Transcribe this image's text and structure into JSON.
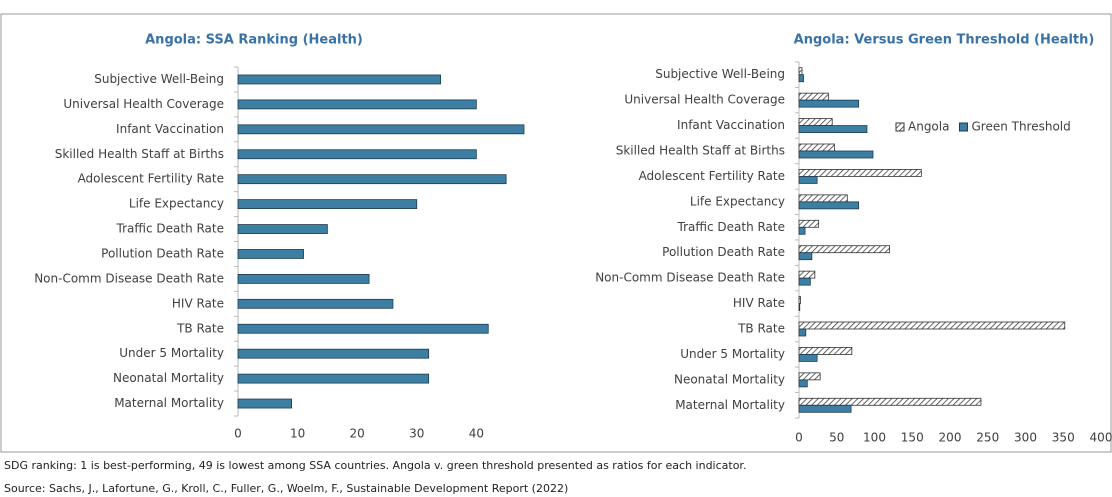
{
  "chart_data": [
    {
      "type": "bar",
      "orientation": "horizontal",
      "title": "Angola: SSA Ranking (Health)",
      "categories": [
        "Subjective Well-Being",
        "Universal Health Coverage",
        "Infant Vaccination",
        "Skilled Health Staff at Births",
        "Adolescent Fertility Rate",
        "Life Expectancy",
        "Traffic Death Rate",
        "Pollution Death Rate",
        "Non-Comm Disease Death Rate",
        "HIV Rate",
        "TB Rate",
        "Under 5 Mortality",
        "Neonatal Mortality",
        "Maternal Mortality"
      ],
      "series": [
        {
          "name": "Angola",
          "color": "#3d7ea3",
          "values": [
            34,
            40,
            48,
            40,
            45,
            30,
            15,
            11,
            22,
            26,
            42,
            32,
            32,
            9
          ]
        }
      ],
      "xlim": [
        0,
        48
      ],
      "xticks": [
        0,
        10,
        20,
        30,
        40
      ],
      "legend": false
    },
    {
      "type": "bar",
      "orientation": "horizontal",
      "title": "Angola: Versus Green Threshold (Health)",
      "categories": [
        "Subjective Well-Being",
        "Universal Health Coverage",
        "Infant Vaccination",
        "Skilled Health Staff at Births",
        "Adolescent Fertility Rate",
        "Life Expectancy",
        "Traffic Death Rate",
        "Pollution Death Rate",
        "Non-Comm Disease Death Rate",
        "HIV Rate",
        "TB Rate",
        "Under 5 Mortality",
        "Neonatal Mortality",
        "Maternal Mortality"
      ],
      "series": [
        {
          "name": "Angola",
          "color": "#333333",
          "hatch": true,
          "values": [
            4,
            39,
            44,
            47,
            162,
            64,
            26,
            120,
            21,
            2,
            352,
            70,
            28,
            241
          ]
        },
        {
          "name": "Green Threshold",
          "color": "#3d7ea3",
          "values": [
            6,
            79,
            90,
            98,
            24,
            79,
            8,
            17,
            15,
            1,
            9,
            24,
            11,
            69
          ]
        }
      ],
      "xlim": [
        0,
        400
      ],
      "xticks": [
        0,
        50,
        100,
        150,
        200,
        250,
        300,
        350,
        400
      ],
      "legend": "upper right"
    }
  ],
  "notes": [
    "SDG ranking: 1 is best-performing, 49 is lowest among SSA countries. Angola v. green threshold presented as ratios for each indicator.",
    "Source: Sachs, J., Lafortune, G., Kroll, C., Fuller, G., Woelm, F., Sustainable Development Report (2022)"
  ]
}
